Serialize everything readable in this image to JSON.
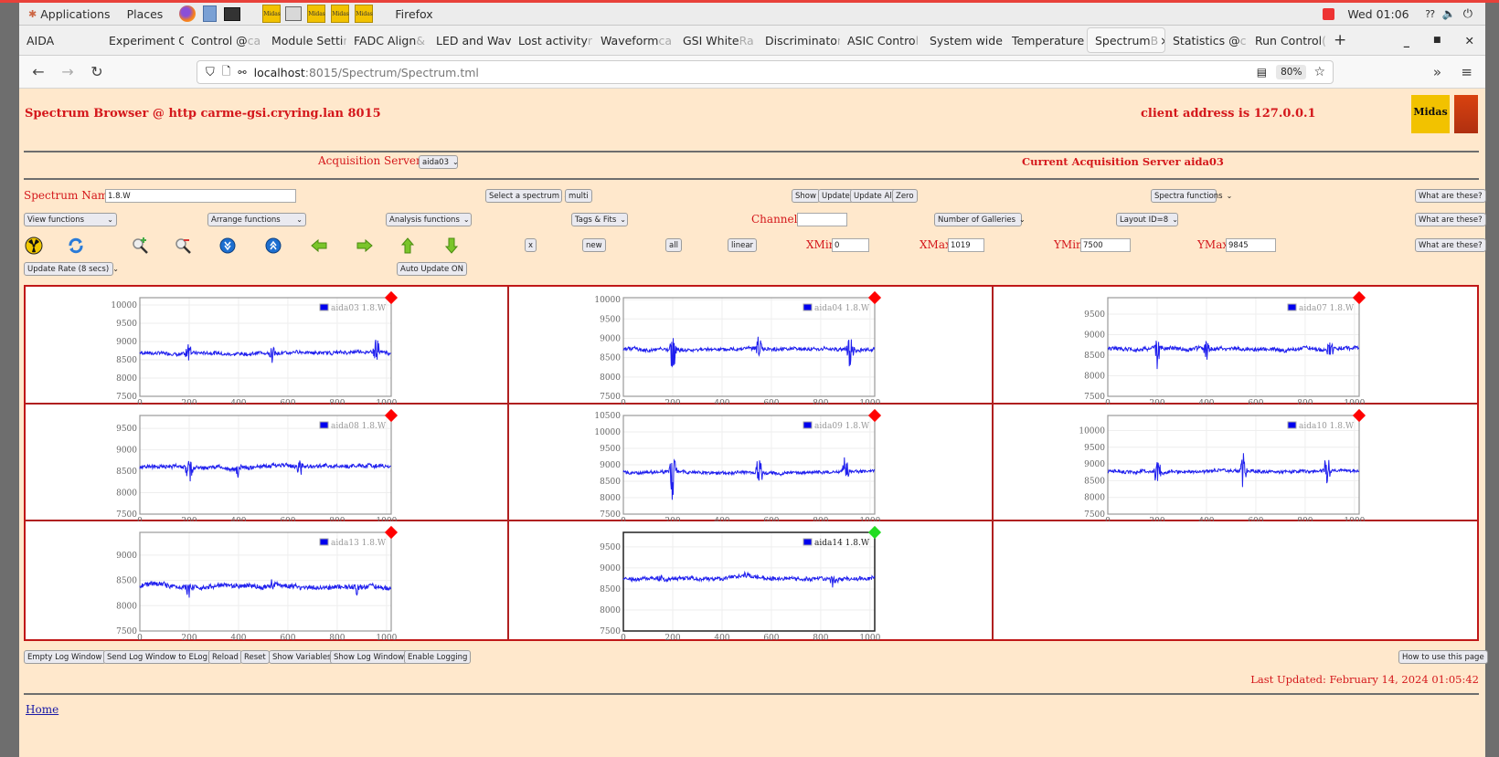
{
  "desktop": {
    "applications_label": "Applications",
    "places_label": "Places",
    "active_app": "Firefox",
    "clock": "Wed 01:06",
    "midas_launchers": [
      "Midas",
      "Midas",
      "Midas",
      "Midas"
    ]
  },
  "browser": {
    "tabs": [
      {
        "label": "AIDA",
        "fade": ""
      },
      {
        "label": "Experiment C",
        "fade": "o"
      },
      {
        "label": "Control @ ",
        "fade": "ca"
      },
      {
        "label": "Module Setti",
        "fade": "n"
      },
      {
        "label": "FADC Align ",
        "fade": "&"
      },
      {
        "label": "LED and Wav",
        "fade": "e"
      },
      {
        "label": "Lost activity ",
        "fade": "r"
      },
      {
        "label": "Waveform ",
        "fade": "ca"
      },
      {
        "label": "GSI White ",
        "fade": "Ra"
      },
      {
        "label": "Discriminato",
        "fade": "r"
      },
      {
        "label": "ASIC Contro",
        "fade": "l"
      },
      {
        "label": "System wide",
        "fade": " "
      },
      {
        "label": "Temperature",
        "fade": " "
      },
      {
        "label": "Spectrum ",
        "fade": "B",
        "active": true
      },
      {
        "label": "Statistics @ ",
        "fade": "c"
      },
      {
        "label": "Run Control ",
        "fade": "("
      }
    ],
    "url_host": "localhost",
    "url_path": ":8015/Spectrum/Spectrum.tml",
    "zoom_level": "80%"
  },
  "page": {
    "title": "Spectrum Browser @ http carme-gsi.cryring.lan 8015",
    "client_address": "client address is 127.0.0.1",
    "acq_servers_label": "Acquisition Servers",
    "acq_server_selected": "aida03",
    "current_server": "Current Acquisition Server aida03",
    "spectrum_name_label": "Spectrum Name:",
    "spectrum_name_value": "1.8.W",
    "select_spectrum": "Select a spectrum",
    "multi": "multi",
    "show": "Show",
    "update": "Update",
    "update_all": "Update All",
    "zero": "Zero",
    "spectra_functions": "Spectra functions",
    "what_are_these": "What are these?",
    "view_functions": "View functions",
    "arrange_functions": "Arrange functions",
    "analysis_functions": "Analysis functions",
    "tags_fits": "Tags & Fits",
    "channel_label": "Channel:",
    "channel_value": "",
    "number_of_galleries": "Number of Galleries",
    "layout_id": "Layout ID=8",
    "x_btn": "x",
    "new_btn": "new",
    "all_btn": "all",
    "linear_btn": "linear",
    "xmin_label": "XMin",
    "xmin_value": "0",
    "xmax_label": "XMax",
    "xmax_value": "1019",
    "ymin_label": "YMin",
    "ymin_value": "7500",
    "ymax_label": "YMax",
    "ymax_value": "9845",
    "update_rate": "Update Rate (8 secs)",
    "auto_update": "Auto Update ON",
    "bottom_buttons": [
      "Empty Log Window",
      "Send Log Window to ELog",
      "Reload",
      "Reset",
      "Show Variables",
      "Show Log Window",
      "Enable Logging"
    ],
    "how_to_use": "How to use this page",
    "last_updated": "Last Updated: February 14, 2024 01:05:42",
    "home_link": "Home",
    "colors": {
      "accent_red": "#d4171b",
      "page_bg": "#ffe8cc",
      "trace": "#2020ee",
      "status_bad": "#ff0000",
      "status_ok": "#22dd22"
    }
  },
  "chart_data": [
    {
      "type": "line",
      "title": "aida03 1.8.W",
      "legend": "aida03 1.8.W",
      "status": "red",
      "xlim": [
        0,
        1019
      ],
      "ylim": [
        7500,
        10200
      ],
      "xticks": [
        0,
        200,
        400,
        600,
        800,
        1000
      ],
      "yticks": [
        7500,
        8000,
        8500,
        9000,
        9500,
        10000
      ],
      "baseline": 8700,
      "spikes": [
        [
          200,
          9100,
          8050
        ],
        [
          540,
          8950,
          8350
        ],
        [
          960,
          9250,
          8400
        ]
      ]
    },
    {
      "type": "line",
      "title": "aida04 1.8.W",
      "legend": "aida04 1.8.W",
      "status": "red",
      "xlim": [
        0,
        1019
      ],
      "ylim": [
        7500,
        10050
      ],
      "xticks": [
        0,
        200,
        400,
        600,
        800,
        1000
      ],
      "yticks": [
        7500,
        8000,
        8500,
        9000,
        9500,
        10000
      ],
      "baseline": 8720,
      "spikes": [
        [
          200,
          9150,
          8100
        ],
        [
          550,
          9150,
          8450
        ],
        [
          920,
          9200,
          8100
        ]
      ]
    },
    {
      "type": "line",
      "title": "aida07 1.8.W",
      "legend": "aida07 1.8.W",
      "status": "red",
      "xlim": [
        0,
        1019
      ],
      "ylim": [
        7500,
        9900
      ],
      "xticks": [
        0,
        200,
        400,
        600,
        800,
        1000
      ],
      "yticks": [
        7500,
        8000,
        8500,
        9000,
        9500
      ],
      "baseline": 8660,
      "spikes": [
        [
          200,
          9000,
          8050
        ],
        [
          400,
          8850,
          8250
        ],
        [
          900,
          8900,
          8350
        ]
      ]
    },
    {
      "type": "line",
      "title": "aida08 1.8.W",
      "legend": "aida08 1.8.W",
      "status": "red",
      "xlim": [
        0,
        1019
      ],
      "ylim": [
        7500,
        9800
      ],
      "xticks": [
        0,
        200,
        400,
        600,
        800,
        1000
      ],
      "yticks": [
        7500,
        8000,
        8500,
        9000,
        9500
      ],
      "baseline": 8600,
      "spikes": [
        [
          200,
          8900,
          8050
        ],
        [
          400,
          8800,
          8350
        ],
        [
          650,
          8800,
          8300
        ]
      ]
    },
    {
      "type": "line",
      "title": "aida09 1.8.W",
      "legend": "aida09 1.8.W",
      "status": "red",
      "xlim": [
        0,
        1019
      ],
      "ylim": [
        7500,
        10500
      ],
      "xticks": [
        0,
        200,
        400,
        600,
        800,
        1000
      ],
      "yticks": [
        7500,
        8000,
        8500,
        9000,
        9500,
        10000,
        10500
      ],
      "baseline": 8770,
      "spikes": [
        [
          200,
          9600,
          7800
        ],
        [
          550,
          9400,
          8100
        ],
        [
          900,
          9350,
          8250
        ]
      ]
    },
    {
      "type": "line",
      "title": "aida10 1.8.W",
      "legend": "aida10 1.8.W",
      "status": "red",
      "xlim": [
        0,
        1019
      ],
      "ylim": [
        7500,
        10450
      ],
      "xticks": [
        0,
        200,
        400,
        600,
        800,
        1000
      ],
      "yticks": [
        7500,
        8000,
        8500,
        9000,
        9500,
        10000
      ],
      "baseline": 8780,
      "spikes": [
        [
          200,
          9350,
          8050
        ],
        [
          550,
          9450,
          8100
        ],
        [
          890,
          9400,
          8150
        ]
      ]
    },
    {
      "type": "line",
      "title": "aida13 1.8.W",
      "legend": "aida13 1.8.W",
      "status": "red",
      "xlim": [
        0,
        1019
      ],
      "ylim": [
        7500,
        9450
      ],
      "xticks": [
        0,
        200,
        400,
        600,
        800,
        1000
      ],
      "yticks": [
        7500,
        8000,
        8500,
        9000
      ],
      "baseline": 8380,
      "spikes": [
        [
          200,
          8450,
          8100
        ],
        [
          540,
          8550,
          8300
        ],
        [
          880,
          8450,
          8200
        ]
      ]
    },
    {
      "type": "line",
      "title": "aida14 1.8.W",
      "legend": "aida14 1.8.W",
      "status": "green",
      "xlim": [
        0,
        1019
      ],
      "ylim": [
        7500,
        9845
      ],
      "xticks": [
        0,
        200,
        400,
        600,
        800,
        1000
      ],
      "yticks": [
        7500,
        8000,
        8500,
        9000,
        9500
      ],
      "baseline": 8760,
      "spikes": [
        [
          150,
          8850,
          8650
        ],
        [
          500,
          8920,
          8700
        ],
        [
          850,
          8800,
          8550
        ]
      ]
    }
  ]
}
